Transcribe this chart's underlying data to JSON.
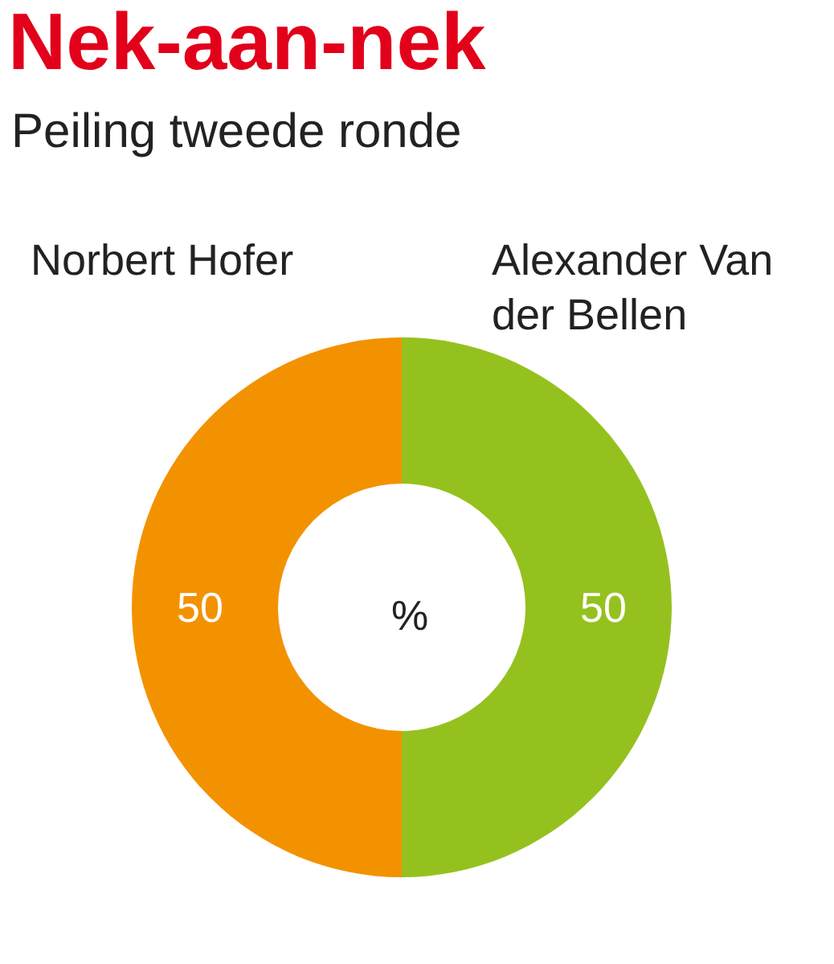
{
  "chart_data": {
    "type": "donut",
    "title": "Nek-aan-nek",
    "subtitle": "Peiling tweede ronde",
    "categories": [
      "Norbert Hofer",
      "Alexander Van der Bellen"
    ],
    "values": [
      50,
      50
    ],
    "colors": [
      "#f39200",
      "#95c11f"
    ],
    "data_labels": true,
    "annotations": [
      "%"
    ]
  }
}
